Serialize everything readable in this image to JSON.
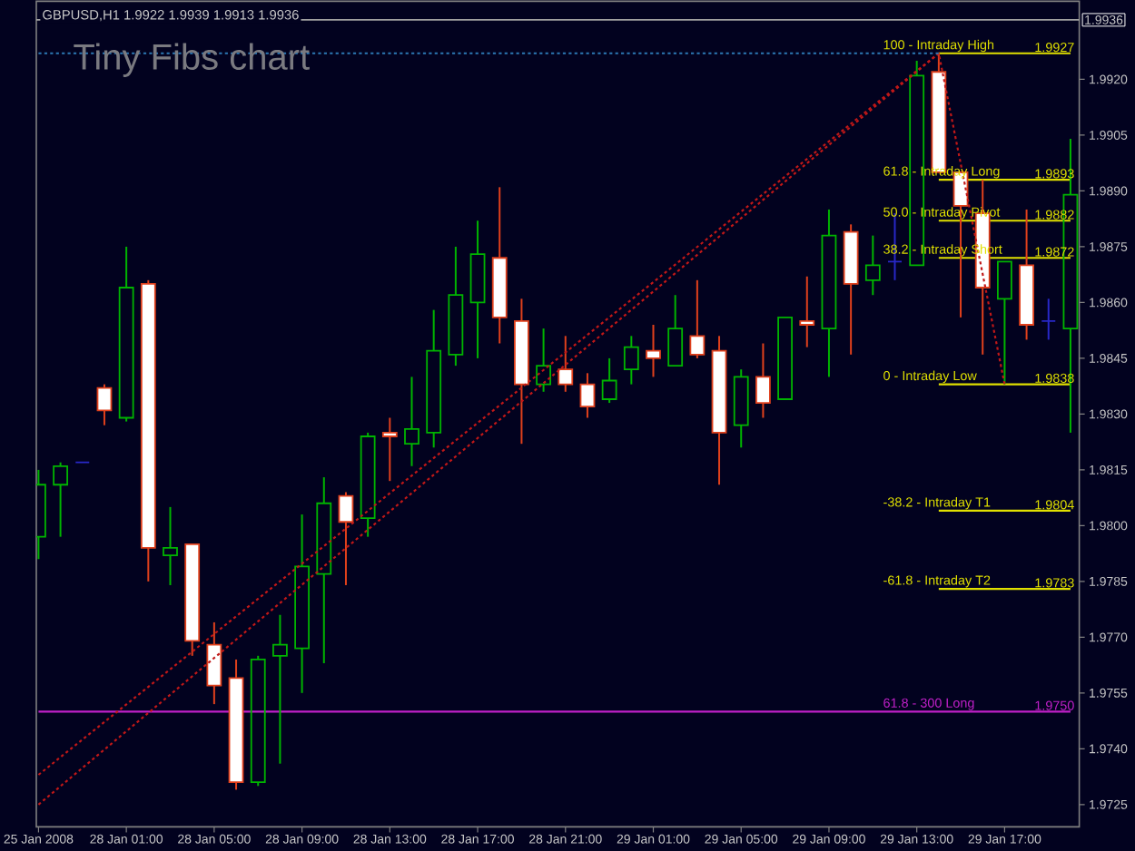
{
  "chart_data": {
    "type": "candlestick",
    "title": "GBPUSD,H1 1.9922 1.9939 1.9913 1.9936",
    "subtitle": "Tiny Fibs chart",
    "categories": [
      "25 Jan 2008",
      null,
      null,
      null,
      "28 Jan 01:00",
      null,
      null,
      null,
      "28 Jan 05:00",
      null,
      null,
      null,
      "28 Jan 09:00",
      null,
      null,
      null,
      "28 Jan 13:00",
      null,
      null,
      null,
      "28 Jan 17:00",
      null,
      null,
      null,
      "28 Jan 21:00",
      null,
      null,
      null,
      "29 Jan 01:00",
      null,
      null,
      null,
      "29 Jan 05:00",
      null,
      null,
      null,
      "29 Jan 09:00",
      null,
      null,
      null,
      "29 Jan 13:00",
      null,
      null,
      null,
      "29 Jan 17:00",
      null,
      null,
      null
    ],
    "ohlc": [
      [
        1.9797,
        1.9815,
        1.9791,
        1.9811
      ],
      [
        1.9811,
        1.9817,
        1.9797,
        1.9816
      ],
      [
        1.9817,
        1.9817,
        1.9817,
        1.9817
      ],
      [
        1.9837,
        1.9838,
        1.9827,
        1.9831
      ],
      [
        1.9829,
        1.9875,
        1.9828,
        1.9864
      ],
      [
        1.9865,
        1.9866,
        1.9785,
        1.9794
      ],
      [
        1.9792,
        1.9805,
        1.9784,
        1.9794
      ],
      [
        1.9795,
        1.9795,
        1.9765,
        1.9769
      ],
      [
        1.9768,
        1.9774,
        1.9752,
        1.9757
      ],
      [
        1.9759,
        1.9764,
        1.9729,
        1.9731
      ],
      [
        1.9731,
        1.9765,
        1.973,
        1.9764
      ],
      [
        1.9765,
        1.9776,
        1.9736,
        1.9768
      ],
      [
        1.9767,
        1.9803,
        1.9755,
        1.9789
      ],
      [
        1.9787,
        1.9813,
        1.9763,
        1.9806
      ],
      [
        1.9808,
        1.9809,
        1.9784,
        1.9801
      ],
      [
        1.9802,
        1.9825,
        1.9797,
        1.9824
      ],
      [
        1.9825,
        1.9829,
        1.9812,
        1.9824
      ],
      [
        1.9822,
        1.984,
        1.9816,
        1.9826
      ],
      [
        1.9825,
        1.9858,
        1.9821,
        1.9847
      ],
      [
        1.9846,
        1.9875,
        1.9843,
        1.9862
      ],
      [
        1.986,
        1.9882,
        1.9845,
        1.9873
      ],
      [
        1.9872,
        1.9891,
        1.9849,
        1.9856
      ],
      [
        1.9855,
        1.9861,
        1.9822,
        1.9838
      ],
      [
        1.9838,
        1.9853,
        1.9836,
        1.9843
      ],
      [
        1.9842,
        1.9851,
        1.9836,
        1.9838
      ],
      [
        1.9838,
        1.9841,
        1.9829,
        1.9832
      ],
      [
        1.9834,
        1.9845,
        1.9833,
        1.9839
      ],
      [
        1.9842,
        1.9851,
        1.9838,
        1.9848
      ],
      [
        1.9847,
        1.9854,
        1.984,
        1.9845
      ],
      [
        1.9843,
        1.9862,
        1.9843,
        1.9853
      ],
      [
        1.9851,
        1.9866,
        1.9845,
        1.9846
      ],
      [
        1.9847,
        1.9851,
        1.9811,
        1.9825
      ],
      [
        1.9827,
        1.9842,
        1.9821,
        1.984
      ],
      [
        1.984,
        1.9849,
        1.9829,
        1.9833
      ],
      [
        1.9834,
        1.9856,
        1.9834,
        1.9856
      ],
      [
        1.9855,
        1.9867,
        1.9848,
        1.9854
      ],
      [
        1.9853,
        1.9885,
        1.984,
        1.9878
      ],
      [
        1.9879,
        1.9881,
        1.9846,
        1.9865
      ],
      [
        1.9866,
        1.9878,
        1.9862,
        1.987
      ],
      [
        1.9871,
        1.9884,
        1.9866,
        1.9871
      ],
      [
        1.987,
        1.9925,
        1.987,
        1.9921
      ],
      [
        1.9922,
        1.9927,
        1.9895,
        1.9895
      ],
      [
        1.9895,
        1.9895,
        1.9856,
        1.9886
      ],
      [
        1.9884,
        1.9893,
        1.9846,
        1.9864
      ],
      [
        1.9861,
        1.9871,
        1.9838,
        1.9871
      ],
      [
        1.987,
        1.9885,
        1.985,
        1.9854
      ],
      [
        1.9855,
        1.9861,
        1.985,
        1.9855
      ],
      [
        1.9853,
        1.9904,
        1.9825,
        1.9889
      ]
    ],
    "colors": [
      "#00b400",
      "#00b400",
      "#2828c8",
      "#e0401c",
      "#00b400",
      "#e0401c",
      "#00b400",
      "#e0401c",
      "#e0401c",
      "#e0401c",
      "#00b400",
      "#00b400",
      "#00b400",
      "#00b400",
      "#e0401c",
      "#00b400",
      "#e0401c",
      "#00b400",
      "#00b400",
      "#00b400",
      "#00b400",
      "#e0401c",
      "#e0401c",
      "#00b400",
      "#e0401c",
      "#e0401c",
      "#00b400",
      "#00b400",
      "#e0401c",
      "#00b400",
      "#e0401c",
      "#e0401c",
      "#00b400",
      "#e0401c",
      "#00b400",
      "#e0401c",
      "#00b400",
      "#e0401c",
      "#00b400",
      "#2828c8",
      "#00b400",
      "#e0401c",
      "#e0401c",
      "#e0401c",
      "#00b400",
      "#e0401c",
      "#2828c8",
      "#00b400"
    ],
    "ylim": [
      1.9719,
      1.9941
    ],
    "yticks": [
      1.9725,
      {
        "value": 1.974,
        "label": "1.9740"
      },
      1.9755,
      {
        "value": 1.977,
        "label": "1.9770"
      },
      1.9785,
      {
        "value": 1.98,
        "label": "1.9800"
      },
      1.9815,
      {
        "value": 1.983,
        "label": "1.9830"
      },
      1.9845,
      {
        "value": 1.986,
        "label": "1.9860"
      },
      1.9875,
      {
        "value": 1.989,
        "label": "1.9890"
      },
      1.9905,
      {
        "value": 1.992,
        "label": "1.9920"
      }
    ],
    "series": [
      {
        "type": "line",
        "color": "#c01818",
        "line_style": "dotted",
        "values": [
          1.9733,
          null,
          null,
          null,
          null,
          null,
          null,
          null,
          null,
          null,
          null,
          null,
          null,
          null,
          null,
          null,
          null,
          null,
          null,
          null,
          null,
          null,
          null,
          null,
          null,
          null,
          null,
          null,
          null,
          null,
          null,
          null,
          null,
          null,
          null,
          null,
          null,
          null,
          null,
          null,
          null,
          1.9927,
          null,
          null,
          1.9838,
          null,
          null,
          null
        ]
      },
      {
        "type": "line",
        "color": "#c01818",
        "line_style": "dotted",
        "values": [
          1.9725,
          null,
          null,
          null,
          null,
          null,
          null,
          null,
          null,
          null,
          null,
          null,
          null,
          null,
          null,
          null,
          null,
          null,
          null,
          null,
          null,
          null,
          null,
          null,
          null,
          null,
          null,
          null,
          null,
          null,
          null,
          null,
          null,
          null,
          null,
          null,
          null,
          null,
          null,
          null,
          null,
          1.9927,
          null,
          null,
          null,
          null,
          null,
          null
        ]
      },
      {
        "type": "line",
        "color": "#2c78b4",
        "line_style": "dotted",
        "values": [
          1.9927,
          null,
          null,
          null,
          null,
          null,
          null,
          null,
          null,
          null,
          null,
          null,
          null,
          null,
          null,
          null,
          null,
          null,
          null,
          null,
          null,
          null,
          null,
          null,
          null,
          null,
          null,
          null,
          null,
          null,
          null,
          null,
          null,
          null,
          null,
          null,
          null,
          null,
          null,
          null,
          null,
          1.9927,
          null,
          null,
          null,
          null,
          null,
          null
        ]
      },
      {
        "type": "line",
        "name": "100 - Intraday High",
        "color": "#e0e000",
        "line_style": "solid",
        "values": [
          null,
          null,
          null,
          null,
          null,
          null,
          null,
          null,
          null,
          null,
          null,
          null,
          null,
          null,
          null,
          null,
          null,
          null,
          null,
          null,
          null,
          null,
          null,
          null,
          null,
          null,
          null,
          null,
          null,
          null,
          null,
          null,
          null,
          null,
          null,
          null,
          null,
          null,
          null,
          null,
          null,
          1.9927,
          null,
          null,
          null,
          null,
          null,
          1.9927
        ],
        "value_labels": [
          null,
          null,
          null,
          null,
          null,
          null,
          null,
          null,
          null,
          null,
          null,
          null,
          null,
          null,
          null,
          null,
          null,
          null,
          null,
          null,
          null,
          null,
          null,
          null,
          null,
          null,
          null,
          null,
          null,
          null,
          null,
          null,
          null,
          null,
          null,
          null,
          null,
          null,
          null,
          null,
          null,
          null,
          null,
          null,
          null,
          null,
          null,
          "1.9927"
        ]
      },
      {
        "type": "line",
        "name": "61.8 - Intraday Long",
        "color": "#e0e000",
        "line_style": "solid",
        "values": [
          null,
          null,
          null,
          null,
          null,
          null,
          null,
          null,
          null,
          null,
          null,
          null,
          null,
          null,
          null,
          null,
          null,
          null,
          null,
          null,
          null,
          null,
          null,
          null,
          null,
          null,
          null,
          null,
          null,
          null,
          null,
          null,
          null,
          null,
          null,
          null,
          null,
          null,
          null,
          null,
          null,
          1.9893,
          null,
          null,
          null,
          null,
          null,
          1.9893
        ],
        "value_labels": [
          null,
          null,
          null,
          null,
          null,
          null,
          null,
          null,
          null,
          null,
          null,
          null,
          null,
          null,
          null,
          null,
          null,
          null,
          null,
          null,
          null,
          null,
          null,
          null,
          null,
          null,
          null,
          null,
          null,
          null,
          null,
          null,
          null,
          null,
          null,
          null,
          null,
          null,
          null,
          null,
          null,
          null,
          null,
          null,
          null,
          null,
          null,
          "1.9893"
        ]
      },
      {
        "type": "line",
        "name": "50.0 - Intraday Pivot",
        "color": "#e0e000",
        "line_style": "solid",
        "values": [
          null,
          null,
          null,
          null,
          null,
          null,
          null,
          null,
          null,
          null,
          null,
          null,
          null,
          null,
          null,
          null,
          null,
          null,
          null,
          null,
          null,
          null,
          null,
          null,
          null,
          null,
          null,
          null,
          null,
          null,
          null,
          null,
          null,
          null,
          null,
          null,
          null,
          null,
          null,
          null,
          null,
          1.9882,
          null,
          null,
          null,
          null,
          null,
          1.9882
        ],
        "value_labels": [
          null,
          null,
          null,
          null,
          null,
          null,
          null,
          null,
          null,
          null,
          null,
          null,
          null,
          null,
          null,
          null,
          null,
          null,
          null,
          null,
          null,
          null,
          null,
          null,
          null,
          null,
          null,
          null,
          null,
          null,
          null,
          null,
          null,
          null,
          null,
          null,
          null,
          null,
          null,
          null,
          null,
          null,
          null,
          null,
          null,
          null,
          null,
          "1.9882"
        ]
      },
      {
        "type": "line",
        "name": "38.2 - Intraday Short",
        "color": "#e0e000",
        "line_style": "solid",
        "values": [
          null,
          null,
          null,
          null,
          null,
          null,
          null,
          null,
          null,
          null,
          null,
          null,
          null,
          null,
          null,
          null,
          null,
          null,
          null,
          null,
          null,
          null,
          null,
          null,
          null,
          null,
          null,
          null,
          null,
          null,
          null,
          null,
          null,
          null,
          null,
          null,
          null,
          null,
          null,
          null,
          null,
          1.9872,
          null,
          null,
          null,
          null,
          null,
          1.9872
        ],
        "value_labels": [
          null,
          null,
          null,
          null,
          null,
          null,
          null,
          null,
          null,
          null,
          null,
          null,
          null,
          null,
          null,
          null,
          null,
          null,
          null,
          null,
          null,
          null,
          null,
          null,
          null,
          null,
          null,
          null,
          null,
          null,
          null,
          null,
          null,
          null,
          null,
          null,
          null,
          null,
          null,
          null,
          null,
          null,
          null,
          null,
          null,
          null,
          null,
          "1.9872"
        ]
      },
      {
        "type": "line",
        "name": "0 - Intraday Low",
        "color": "#e0e000",
        "line_style": "solid",
        "values": [
          null,
          null,
          null,
          null,
          null,
          null,
          null,
          null,
          null,
          null,
          null,
          null,
          null,
          null,
          null,
          null,
          null,
          null,
          null,
          null,
          null,
          null,
          null,
          null,
          null,
          null,
          null,
          null,
          null,
          null,
          null,
          null,
          null,
          null,
          null,
          null,
          null,
          null,
          null,
          null,
          null,
          1.9838,
          null,
          null,
          null,
          null,
          null,
          1.9838
        ],
        "value_labels": [
          null,
          null,
          null,
          null,
          null,
          null,
          null,
          null,
          null,
          null,
          null,
          null,
          null,
          null,
          null,
          null,
          null,
          null,
          null,
          null,
          null,
          null,
          null,
          null,
          null,
          null,
          null,
          null,
          null,
          null,
          null,
          null,
          null,
          null,
          null,
          null,
          null,
          null,
          null,
          null,
          null,
          null,
          null,
          null,
          null,
          null,
          null,
          "1.9838"
        ]
      },
      {
        "type": "line",
        "name": "-38.2 - Intraday T1",
        "color": "#e0e000",
        "line_style": "solid",
        "values": [
          null,
          null,
          null,
          null,
          null,
          null,
          null,
          null,
          null,
          null,
          null,
          null,
          null,
          null,
          null,
          null,
          null,
          null,
          null,
          null,
          null,
          null,
          null,
          null,
          null,
          null,
          null,
          null,
          null,
          null,
          null,
          null,
          null,
          null,
          null,
          null,
          null,
          null,
          null,
          null,
          null,
          1.9804,
          null,
          null,
          null,
          null,
          null,
          1.9804
        ],
        "value_labels": [
          null,
          null,
          null,
          null,
          null,
          null,
          null,
          null,
          null,
          null,
          null,
          null,
          null,
          null,
          null,
          null,
          null,
          null,
          null,
          null,
          null,
          null,
          null,
          null,
          null,
          null,
          null,
          null,
          null,
          null,
          null,
          null,
          null,
          null,
          null,
          null,
          null,
          null,
          null,
          null,
          null,
          null,
          null,
          null,
          null,
          null,
          null,
          "1.9804"
        ]
      },
      {
        "type": "line",
        "name": "-61.8 - Intraday T2",
        "color": "#e0e000",
        "line_style": "solid",
        "values": [
          null,
          null,
          null,
          null,
          null,
          null,
          null,
          null,
          null,
          null,
          null,
          null,
          null,
          null,
          null,
          null,
          null,
          null,
          null,
          null,
          null,
          null,
          null,
          null,
          null,
          null,
          null,
          null,
          null,
          null,
          null,
          null,
          null,
          null,
          null,
          null,
          null,
          null,
          null,
          null,
          null,
          1.9783,
          null,
          null,
          null,
          null,
          null,
          1.9783
        ],
        "value_labels": [
          null,
          null,
          null,
          null,
          null,
          null,
          null,
          null,
          null,
          null,
          null,
          null,
          null,
          null,
          null,
          null,
          null,
          null,
          null,
          null,
          null,
          null,
          null,
          null,
          null,
          null,
          null,
          null,
          null,
          null,
          null,
          null,
          null,
          null,
          null,
          null,
          null,
          null,
          null,
          null,
          null,
          null,
          null,
          null,
          null,
          null,
          null,
          "1.9783"
        ]
      },
      {
        "type": "line",
        "name": "61.8 - 300 Long",
        "color": "#c020c8",
        "line_style": "solid",
        "values": [
          1.975,
          null,
          null,
          null,
          null,
          null,
          null,
          null,
          null,
          null,
          null,
          null,
          null,
          null,
          null,
          null,
          null,
          null,
          null,
          null,
          null,
          null,
          null,
          null,
          null,
          null,
          null,
          null,
          null,
          null,
          null,
          null,
          null,
          null,
          null,
          null,
          null,
          null,
          null,
          null,
          null,
          null,
          null,
          null,
          null,
          null,
          null,
          1.975
        ],
        "value_labels": [
          null,
          null,
          null,
          null,
          null,
          null,
          null,
          null,
          null,
          null,
          null,
          null,
          null,
          null,
          null,
          null,
          null,
          null,
          null,
          null,
          null,
          null,
          null,
          null,
          null,
          null,
          null,
          null,
          null,
          null,
          null,
          null,
          null,
          null,
          null,
          null,
          null,
          null,
          null,
          null,
          null,
          null,
          null,
          null,
          null,
          null,
          null,
          "1.9750"
        ]
      }
    ],
    "ref_lines": [
      {
        "axis": "y",
        "value": 1.9936,
        "label": "1.9936",
        "color": "#a0a0a0",
        "line_style": "solid"
      }
    ]
  }
}
